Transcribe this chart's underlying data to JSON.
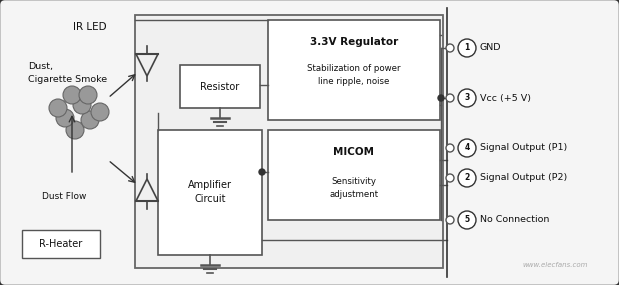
{
  "bg_color": "#e8e8e8",
  "box_color": "#ffffff",
  "line_color": "#555555",
  "dark_line": "#333333",
  "text_color": "#111111",
  "ir_led_label": "IR LED",
  "dust_label": "Dust,\nCigarette Smoke",
  "dust_flow_label": "Dust Flow",
  "rheater_label": "R-Heater",
  "resistor_label": "Resistor",
  "amplifier_label": "Amplifier\nCircuit",
  "regulator_label": "3.3V Regulator",
  "regulator_sub": "Stabilization of power\nline ripple, noise",
  "micom_label": "MICOM",
  "micom_sub": "Sensitivity\nadjustment",
  "pin_y": [
    50,
    100,
    148,
    178,
    218
  ],
  "pin_nums": [
    "1",
    "3",
    "4",
    "2",
    "5"
  ],
  "pin_labels": [
    "GND",
    "Vcc (+5 V)",
    "Signal Output (P1)",
    "Signal Output (P2)",
    "No Connection"
  ],
  "watermark": "www.elecfans.com"
}
